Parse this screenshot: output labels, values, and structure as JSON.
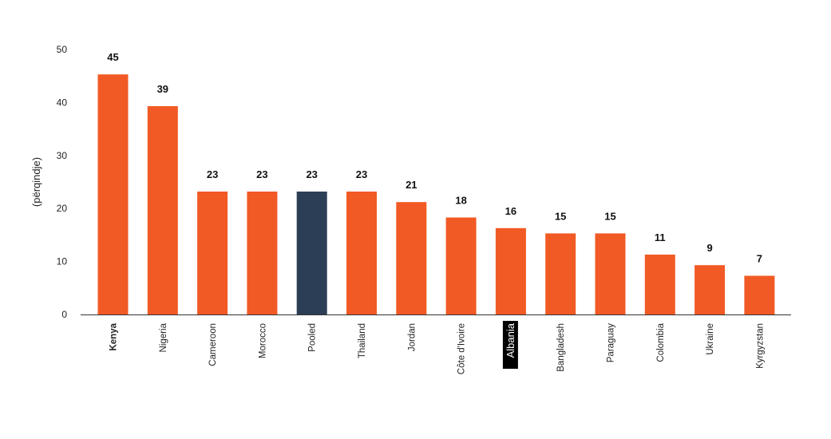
{
  "chart_data": {
    "type": "bar",
    "title": "",
    "xlabel": "",
    "ylabel": "(përqindje)",
    "ylim": [
      0,
      50
    ],
    "yticks": [
      0,
      10,
      20,
      30,
      40,
      50
    ],
    "categories": [
      "Kenya",
      "Nigeria",
      "Cameroon",
      "Morocco",
      "Pooled",
      "Thailand",
      "Jordan",
      "Côte d'Ivoire",
      "Albania",
      "Bangladesh",
      "Paraguay",
      "Colombia",
      "Ukraine",
      "Kyrgyzstan"
    ],
    "values": [
      45,
      39,
      23,
      23,
      23,
      23,
      21,
      18,
      16,
      15,
      15,
      11,
      9,
      7
    ],
    "bar_heights": [
      45.3,
      39.3,
      23.2,
      23.2,
      23.2,
      23.2,
      21.2,
      18.3,
      16.3,
      15.3,
      15.3,
      11.3,
      9.3,
      7.3
    ],
    "highlight_category": "Pooled",
    "label_highlight_category": "Albania",
    "bold_category": "Kenya",
    "grid": false,
    "legend": "none",
    "colors": {
      "bar": "#f15a24",
      "highlight_bar": "#2c3e55",
      "axis": "#333333",
      "label_highlight_bg": "#000000",
      "label_highlight_text": "#ffffff"
    }
  }
}
